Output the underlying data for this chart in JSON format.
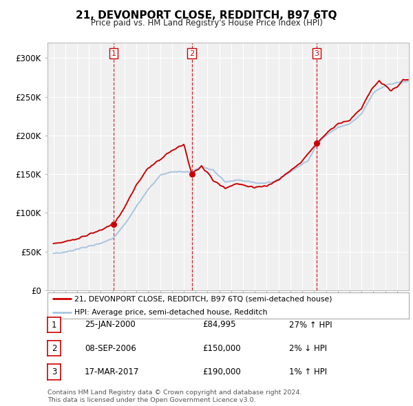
{
  "title": "21, DEVONPORT CLOSE, REDDITCH, B97 6TQ",
  "subtitle": "Price paid vs. HM Land Registry's House Price Index (HPI)",
  "legend_line1": "21, DEVONPORT CLOSE, REDDITCH, B97 6TQ (semi-detached house)",
  "legend_line2": "HPI: Average price, semi-detached house, Redditch",
  "footer1": "Contains HM Land Registry data © Crown copyright and database right 2024.",
  "footer2": "This data is licensed under the Open Government Licence v3.0.",
  "transactions": [
    {
      "num": 1,
      "date": "25-JAN-2000",
      "price": "£84,995",
      "change": "27% ↑ HPI"
    },
    {
      "num": 2,
      "date": "08-SEP-2006",
      "price": "£150,000",
      "change": "2% ↓ HPI"
    },
    {
      "num": 3,
      "date": "17-MAR-2017",
      "price": "£190,000",
      "change": "1% ↑ HPI"
    }
  ],
  "sale_years": [
    2000.07,
    2006.69,
    2017.21
  ],
  "sale_prices": [
    84995,
    150000,
    190000
  ],
  "hpi_color": "#a8c4e0",
  "price_color": "#cc0000",
  "marker_color": "#cc0000",
  "vline_color": "#cc0000",
  "background_color": "#ffffff",
  "plot_bg_color": "#f0f0f0",
  "grid_color": "#ffffff",
  "ylim": [
    0,
    320000
  ],
  "yticks": [
    0,
    50000,
    100000,
    150000,
    200000,
    250000,
    300000
  ],
  "ytick_labels": [
    "£0",
    "£50K",
    "£100K",
    "£150K",
    "£200K",
    "£250K",
    "£300K"
  ],
  "xlim_start": 1994.5,
  "xlim_end": 2025.0,
  "xticks": [
    1995,
    1996,
    1997,
    1998,
    1999,
    2000,
    2001,
    2002,
    2003,
    2004,
    2005,
    2006,
    2007,
    2008,
    2009,
    2010,
    2011,
    2012,
    2013,
    2014,
    2015,
    2016,
    2017,
    2018,
    2019,
    2020,
    2021,
    2022,
    2023,
    2024
  ]
}
